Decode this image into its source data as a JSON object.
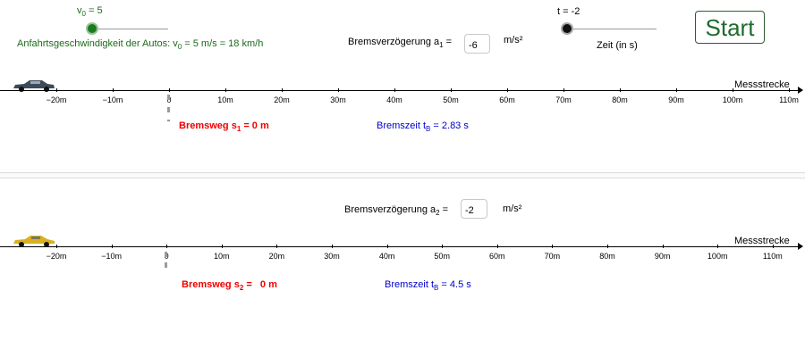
{
  "colors": {
    "accent_green": "#1a6b1a",
    "brake_red": "#ee0000",
    "time_blue": "#0000cc",
    "knob_green": "#1c7c1c",
    "car1": "#3c4a5a",
    "car2": "#d8b020"
  },
  "v0_slider": {
    "label_main": "v",
    "label_sub": "0",
    "label_rest": " = 5",
    "value": 5
  },
  "speed_text": {
    "p1": "Anfahrtsgeschwindigkeit der Autos: v",
    "sub": "0",
    "p2": " = 5 m/s = 18 km/h"
  },
  "t_slider": {
    "label": "t = -2",
    "caption": "Zeit (in s)",
    "value": -2
  },
  "start_button": {
    "label": "Start"
  },
  "section1": {
    "a_label_pre": "Bremsverzögerung a",
    "a_label_sub": "1",
    "a_label_post": " =",
    "a_value": "-6",
    "unit": "m/s²",
    "axis_title": "Messstrecke",
    "brake_dist": {
      "pre": "Bremsweg s",
      "sub": "1",
      "post": " = 0 m"
    },
    "brake_time": {
      "pre": "Bremszeit t",
      "sub": "B",
      "post": " = 2.83 s"
    }
  },
  "section2": {
    "a_label_pre": "Bremsverzögerung a",
    "a_label_sub": "2",
    "a_label_post": " =",
    "a_value": "-2",
    "unit": "m/s²",
    "axis_title": "Messstrecke",
    "brake_dist": {
      "pre": "Bremsweg s",
      "sub": "2",
      "post": " =   0 m"
    },
    "brake_time": {
      "pre": "Bremszeit t",
      "sub": "B",
      "post": " = 4.5 s"
    }
  },
  "axis_ticks": [
    "−20m",
    "−10m",
    "0",
    "10m",
    "20m",
    "30m",
    "40m",
    "50m",
    "60m",
    "70m",
    "80m",
    "90m",
    "100m",
    "110m"
  ],
  "icons": {
    "car1": "sedan-car-icon",
    "car2": "sports-car-icon"
  }
}
